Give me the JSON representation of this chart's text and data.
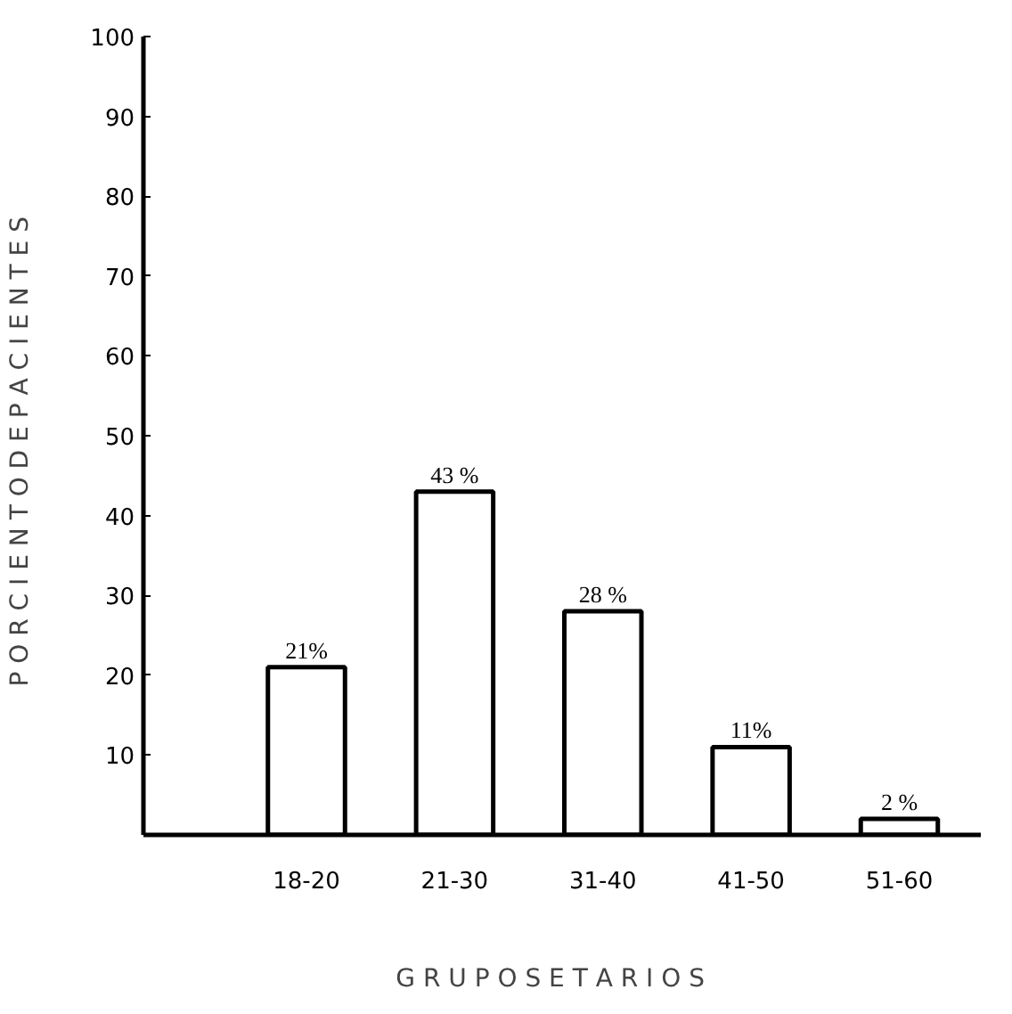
{
  "chart_data": {
    "type": "bar",
    "xlabel": "G R U P O S    E T A R I O S",
    "ylabel": "P O R C I E N T O   D E   P A C I E N T E S",
    "categories": [
      "18-20",
      "21-30",
      "31-40",
      "41-50",
      "51-60"
    ],
    "values": [
      21,
      43,
      28,
      11,
      2
    ],
    "value_labels": [
      "21%",
      "43 %",
      "28 %",
      "11%",
      "2 %"
    ],
    "color": "#ffffff",
    "ylim": [
      0,
      100
    ],
    "yticks": [
      {
        "value": 0,
        "label": null
      },
      10,
      20,
      30,
      40,
      50,
      60,
      70,
      80,
      90,
      100
    ],
    "grid": false
  }
}
